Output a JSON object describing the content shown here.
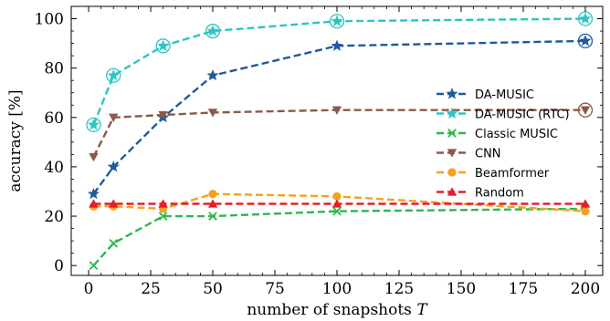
{
  "chart_data": {
    "type": "line",
    "xlabel": "number of snapshots T",
    "ylabel": "accuracy [%]",
    "xlim": [
      -7,
      207
    ],
    "ylim": [
      -4,
      105
    ],
    "xticks": [
      0,
      25,
      50,
      75,
      100,
      125,
      150,
      175,
      200
    ],
    "yticks": [
      0,
      20,
      40,
      60,
      80,
      100
    ],
    "grid": false,
    "legend_position": "right",
    "series": [
      {
        "name": "DA-MUSIC",
        "color": "#1f5a9e",
        "marker": "star",
        "line": "dashed",
        "x": [
          2,
          10,
          30,
          50,
          100,
          200
        ],
        "y": [
          29,
          40,
          60,
          77,
          89,
          91
        ],
        "highlight_x": [
          200
        ],
        "highlight_y": [
          91
        ]
      },
      {
        "name": "DA-MUSIC (RTC)",
        "color": "#2ec4c4",
        "marker": "star",
        "line": "dashed",
        "x": [
          2,
          10,
          30,
          50,
          100,
          200
        ],
        "y": [
          57,
          77,
          89,
          95,
          99,
          100
        ],
        "highlight_x": [
          2,
          10,
          30,
          50,
          100,
          200
        ],
        "highlight_y": [
          57,
          77,
          89,
          95,
          99,
          100
        ]
      },
      {
        "name": "Classic MUSIC",
        "color": "#2db84d",
        "marker": "x",
        "line": "dashed",
        "x": [
          2,
          10,
          30,
          50,
          100,
          200
        ],
        "y": [
          0,
          9,
          20,
          20,
          22,
          23
        ]
      },
      {
        "name": "CNN",
        "color": "#8b5a4a",
        "marker": "triangle-down",
        "line": "dashed",
        "x": [
          2,
          10,
          30,
          50,
          100,
          200
        ],
        "y": [
          44,
          60,
          61,
          62,
          63,
          63
        ],
        "highlight_x": [
          200
        ],
        "highlight_y": [
          63
        ]
      },
      {
        "name": "Beamformer",
        "color": "#f5a020",
        "marker": "circle",
        "line": "dashed",
        "x": [
          2,
          10,
          30,
          50,
          100,
          200
        ],
        "y": [
          24,
          24,
          23,
          29,
          28,
          22
        ]
      },
      {
        "name": "Random",
        "color": "#e0202a",
        "marker": "triangle-up",
        "line": "dashed",
        "x": [
          2,
          10,
          30,
          50,
          100,
          200
        ],
        "y": [
          25,
          25,
          25,
          25,
          25,
          25
        ]
      }
    ]
  }
}
